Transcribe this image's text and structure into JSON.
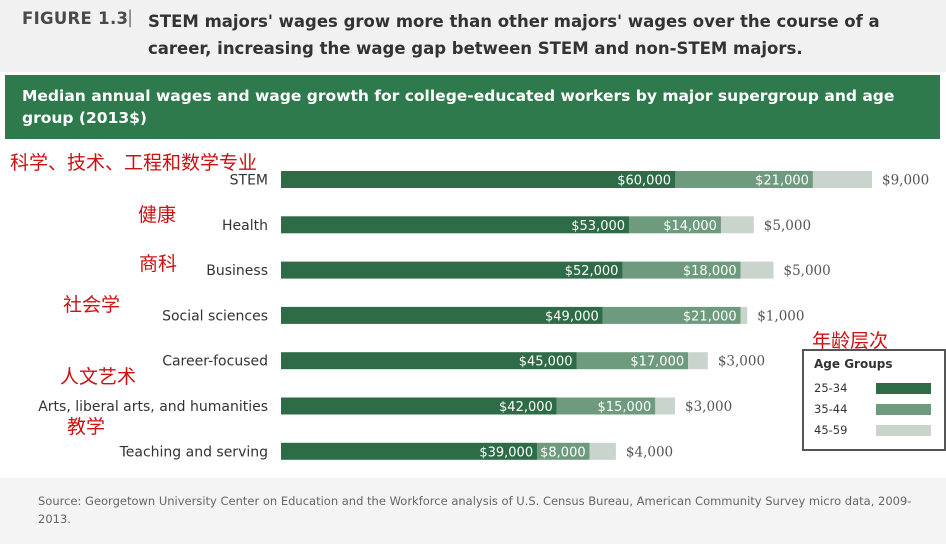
{
  "figure": {
    "label": "FIGURE 1.3",
    "separator": "|",
    "caption": "STEM majors' wages grow more than other majors' wages over the course of a career, increasing the wage gap between STEM and non-STEM majors."
  },
  "header": {
    "title": "Median annual wages and wage growth for college-educated workers by major supergroup and age group (2013$)"
  },
  "colors": {
    "header_green": "#2e7a4c",
    "age_25_34": "#2e6b47",
    "age_35_44": "#6e9a7e",
    "age_45_59": "#c9d4cd",
    "annotation_red": "#cc1111"
  },
  "chart_data": {
    "type": "bar",
    "orientation": "horizontal",
    "stacked": true,
    "categories": [
      "STEM",
      "Health",
      "Business",
      "Social sciences",
      "Career-focused",
      "Arts, liberal arts, and humanities",
      "Teaching and serving"
    ],
    "series": [
      {
        "name": "25-34",
        "values": [
          60000,
          53000,
          52000,
          49000,
          45000,
          42000,
          39000
        ],
        "labels": [
          "$60,000",
          "$53,000",
          "$52,000",
          "$49,000",
          "$45,000",
          "$42,000",
          "$39,000"
        ]
      },
      {
        "name": "35-44",
        "values": [
          21000,
          14000,
          18000,
          21000,
          17000,
          15000,
          8000
        ],
        "labels": [
          "$21,000",
          "$14,000",
          "$18,000",
          "$21,000",
          "$17,000",
          "$15,000",
          "$8,000"
        ]
      },
      {
        "name": "45-59",
        "values": [
          9000,
          5000,
          5000,
          1000,
          3000,
          3000,
          4000
        ],
        "labels": [
          "$9,000",
          "$5,000",
          "$5,000",
          "$1,000",
          "$3,000",
          "$3,000",
          "$4,000"
        ]
      }
    ],
    "legend": {
      "title": "Age Groups",
      "placement": "bottom-right"
    },
    "annotations_cn": [
      "科学、技术、工程和数学专业",
      "健康",
      "商科",
      "社会学",
      "人文艺术",
      "教学",
      "年龄层次"
    ]
  },
  "source": {
    "text": "Source: Georgetown University Center on Education and the Workforce analysis of U.S. Census Bureau, American Community Survey micro data, 2009-2013."
  }
}
